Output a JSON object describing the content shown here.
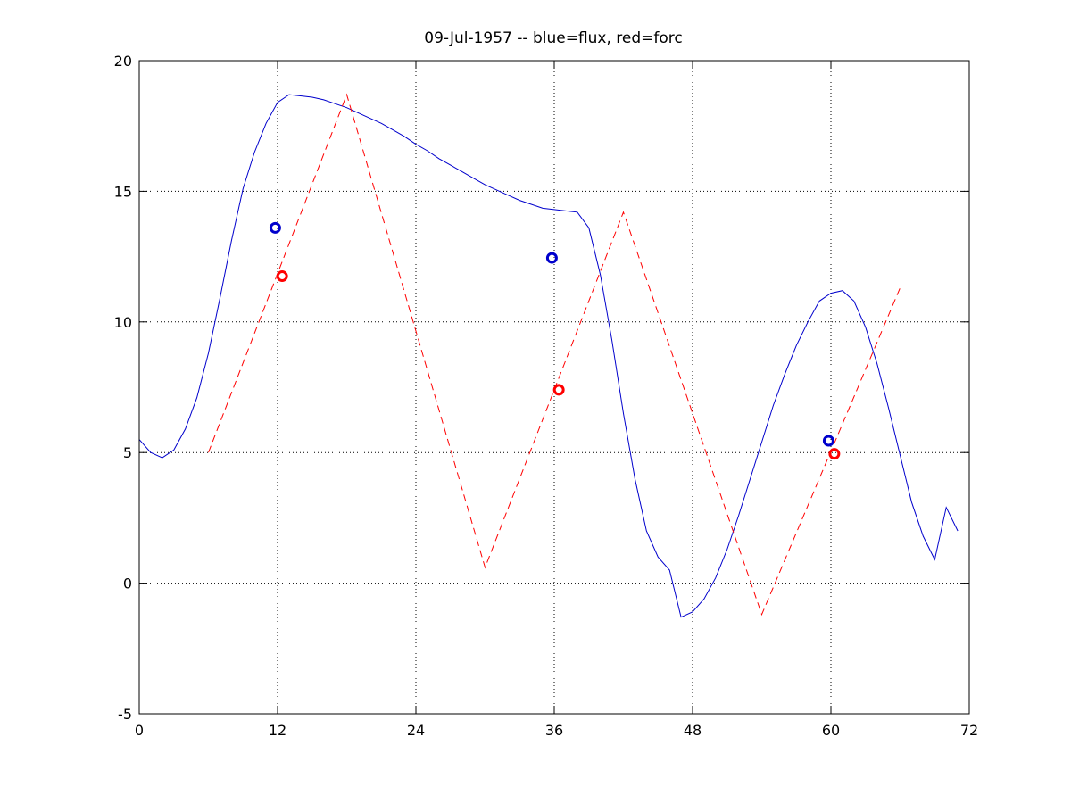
{
  "chart_data": {
    "type": "line",
    "title": "09-Jul-1957 -- blue=flux, red=forc",
    "xlabel": "",
    "ylabel": "",
    "xlim": [
      0,
      72
    ],
    "ylim": [
      -5,
      20
    ],
    "xticks": [
      0,
      12,
      24,
      36,
      48,
      60,
      72
    ],
    "yticks": [
      -5,
      0,
      5,
      10,
      15,
      20
    ],
    "grid": true,
    "series": [
      {
        "color": "#0000cc",
        "style": "solid",
        "x": [
          0,
          1,
          2,
          3,
          4,
          5,
          6,
          7,
          8,
          9,
          10,
          11,
          12,
          13,
          14,
          15,
          16,
          17,
          18,
          19,
          20,
          21,
          22,
          23,
          24,
          25,
          26,
          27,
          28,
          29,
          30,
          31,
          32,
          33,
          34,
          35,
          36,
          37,
          38,
          39,
          40,
          41,
          42,
          43,
          44,
          45,
          46,
          47,
          48,
          49,
          50,
          51,
          52,
          53,
          54,
          55,
          56,
          57,
          58,
          59,
          60,
          61,
          62,
          63,
          64,
          65,
          66,
          67,
          68,
          69,
          70,
          71
        ],
        "values": [
          5.5,
          5.0,
          4.8,
          5.1,
          5.9,
          7.1,
          8.8,
          10.9,
          13.1,
          15.1,
          16.5,
          17.6,
          18.4,
          18.7,
          18.65,
          18.6,
          18.5,
          18.35,
          18.2,
          18.0,
          17.8,
          17.6,
          17.35,
          17.1,
          16.8,
          16.55,
          16.25,
          16.0,
          15.75,
          15.5,
          15.25,
          15.05,
          14.85,
          14.65,
          14.5,
          14.35,
          14.3,
          14.25,
          14.2,
          13.6,
          11.8,
          9.3,
          6.5,
          4.0,
          2.0,
          1.0,
          0.5,
          -1.3,
          -1.1,
          -0.6,
          0.2,
          1.3,
          2.6,
          4.0,
          5.4,
          6.8,
          8.0,
          9.1,
          10.0,
          10.8,
          11.1,
          11.2,
          10.8,
          9.8,
          8.4,
          6.7,
          4.9,
          3.1,
          1.8,
          0.9,
          2.9,
          2.0
        ]
      },
      {
        "color": "#ff0000",
        "style": "dashed",
        "x": [
          6,
          18,
          30,
          42,
          54,
          66
        ],
        "values": [
          5.0,
          18.7,
          0.6,
          14.2,
          -1.2,
          11.3
        ]
      }
    ],
    "markers": [
      {
        "color": "#0000cc",
        "x": 11.8,
        "y": 13.6
      },
      {
        "color": "#ff0000",
        "x": 12.4,
        "y": 11.75
      },
      {
        "color": "#0000cc",
        "x": 35.8,
        "y": 12.45
      },
      {
        "color": "#ff0000",
        "x": 36.4,
        "y": 7.4
      },
      {
        "color": "#0000cc",
        "x": 59.8,
        "y": 5.45
      },
      {
        "color": "#ff0000",
        "x": 60.3,
        "y": 4.95
      }
    ]
  }
}
